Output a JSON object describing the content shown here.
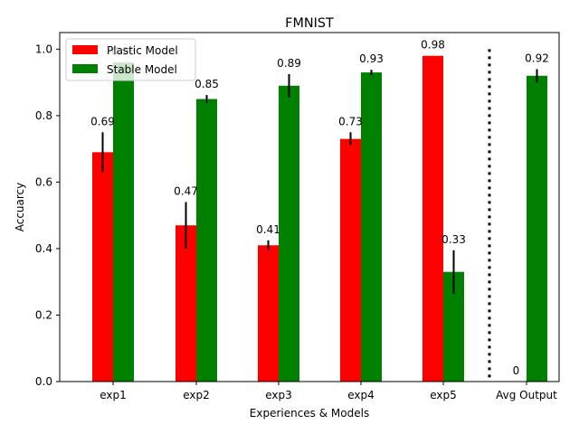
{
  "chart_data": {
    "type": "bar",
    "title": "FMNIST",
    "xlabel": "Experiences & Models",
    "ylabel": "Accuarcy",
    "ylim": [
      0,
      1.05
    ],
    "yticks": [
      "0.0",
      "0.2",
      "0.4",
      "0.6",
      "0.8",
      "1.0"
    ],
    "ytick_values": [
      0,
      0.2,
      0.4,
      0.6,
      0.8,
      1.0
    ],
    "categories": [
      "exp1",
      "exp2",
      "exp3",
      "exp4",
      "exp5",
      "Avg Output"
    ],
    "legend_position": "top-left",
    "separator": {
      "style": "dotted",
      "color": "#000000",
      "between": [
        "exp5",
        "Avg Output"
      ]
    },
    "series": [
      {
        "name": "Plastic Model",
        "color": "#ff0000",
        "values": [
          0.69,
          0.47,
          0.41,
          0.73,
          0.98,
          0
        ],
        "errors": [
          0.06,
          0.07,
          0.015,
          0.02,
          null,
          null
        ],
        "labels": [
          "0.69",
          "0.47",
          "0.41",
          "0.73",
          "0.98",
          "0"
        ]
      },
      {
        "name": "Stable Model",
        "color": "#008000",
        "values": [
          0.96,
          0.85,
          0.89,
          0.93,
          0.33,
          0.92
        ],
        "errors": [
          null,
          0.012,
          0.035,
          0.008,
          0.065,
          0.02
        ],
        "labels": [
          "0.96",
          "0.85",
          "0.89",
          "0.93",
          "0.33",
          "0.92"
        ]
      }
    ]
  }
}
